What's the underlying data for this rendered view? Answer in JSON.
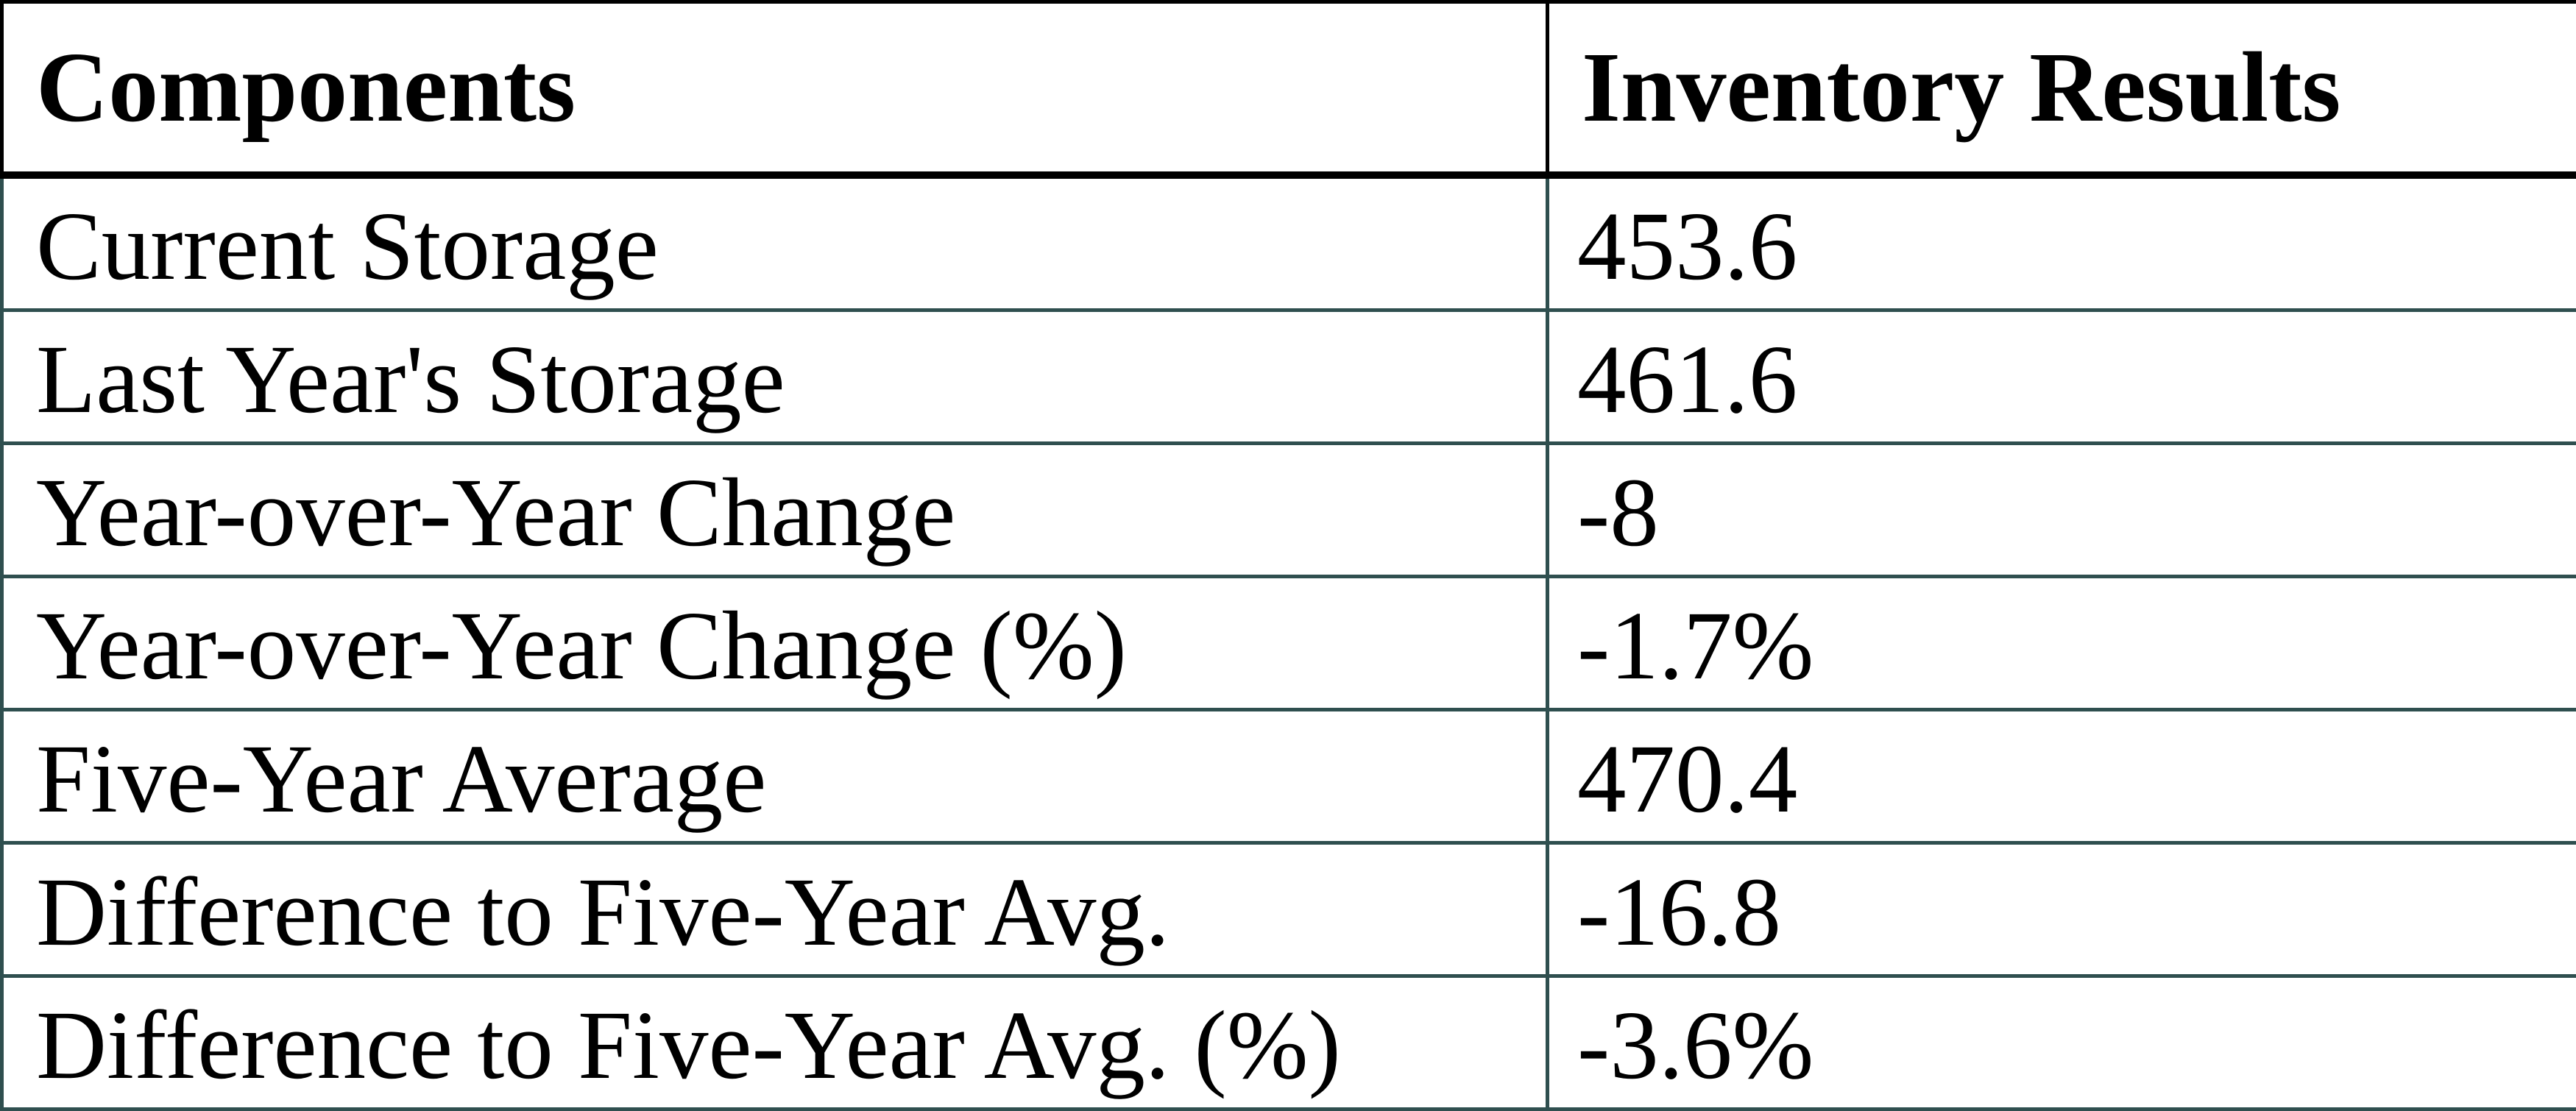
{
  "chart_data": {
    "type": "table",
    "columns": [
      "Components",
      "Inventory Results"
    ],
    "rows": [
      {
        "component": "Current Storage",
        "value": 453.6,
        "display": "453.6"
      },
      {
        "component": "Last Year's Storage",
        "value": 461.6,
        "display": "461.6"
      },
      {
        "component": "Year-over-Year Change",
        "value": -8,
        "display": "-8"
      },
      {
        "component": "Year-over-Year Change (%)",
        "value": -1.7,
        "display": "-1.7%"
      },
      {
        "component": "Five-Year Average",
        "value": 470.4,
        "display": "470.4"
      },
      {
        "component": "Difference to Five-Year Avg.",
        "value": -16.8,
        "display": "-16.8"
      },
      {
        "component": "Difference to Five-Year Avg. (%)",
        "value": -3.6,
        "display": "-3.6%"
      }
    ]
  },
  "colors": {
    "header_border": "#000000",
    "body_border": "#2F4F4F",
    "text": "#000000",
    "background": "#FFFFFF"
  }
}
